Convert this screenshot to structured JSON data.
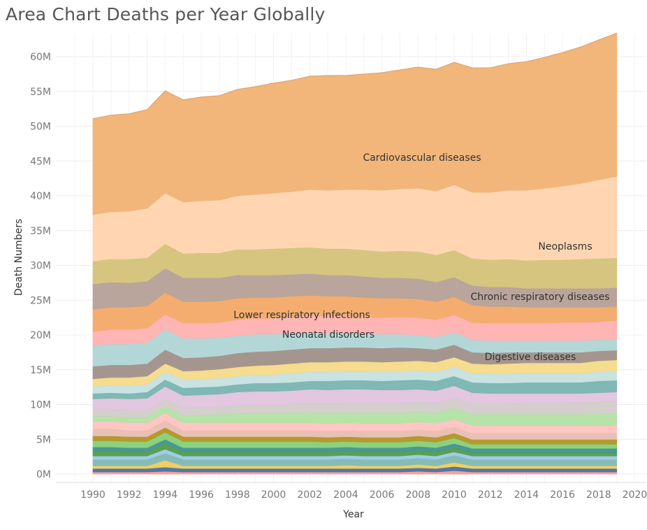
{
  "title": "Area Chart Deaths per Year Globally",
  "chart_data": {
    "type": "area",
    "title": "Area Chart Deaths per Year Globally",
    "xlabel": "Year",
    "ylabel": "Death Numbers",
    "xlim": [
      1988,
      2020
    ],
    "ylim": [
      -1,
      63
    ],
    "xticks": [
      "1990",
      "1992",
      "1994",
      "1996",
      "1998",
      "2000",
      "2002",
      "2004",
      "2006",
      "2008",
      "2010",
      "2012",
      "2014",
      "2016",
      "2018",
      "2020"
    ],
    "yticks": [
      "0M",
      "5M",
      "10M",
      "15M",
      "20M",
      "25M",
      "30M",
      "35M",
      "40M",
      "45M",
      "50M",
      "55M",
      "60M"
    ],
    "grid": true,
    "x": [
      1990,
      1991,
      1992,
      1993,
      1994,
      1995,
      1996,
      1997,
      1998,
      1999,
      2000,
      2001,
      2002,
      2003,
      2004,
      2005,
      2006,
      2007,
      2008,
      2009,
      2010,
      2011,
      2012,
      2013,
      2014,
      2015,
      2016,
      2017,
      2018,
      2019
    ],
    "series": [
      {
        "name": "",
        "color": "#ff9d9a",
        "values": [
          0.3,
          0.3,
          0.3,
          0.3,
          0.4,
          0.3,
          0.3,
          0.3,
          0.3,
          0.3,
          0.3,
          0.3,
          0.3,
          0.3,
          0.3,
          0.3,
          0.3,
          0.3,
          0.4,
          0.3,
          0.5,
          0.3,
          0.3,
          0.3,
          0.3,
          0.3,
          0.3,
          0.3,
          0.3,
          0.3
        ]
      },
      {
        "name": "",
        "color": "#4e79a7",
        "values": [
          0.5,
          0.5,
          0.5,
          0.5,
          0.6,
          0.5,
          0.5,
          0.5,
          0.5,
          0.5,
          0.5,
          0.5,
          0.5,
          0.5,
          0.5,
          0.5,
          0.5,
          0.5,
          0.5,
          0.5,
          0.6,
          0.5,
          0.5,
          0.5,
          0.5,
          0.5,
          0.5,
          0.5,
          0.5,
          0.5
        ]
      },
      {
        "name": "",
        "color": "#f1ce63",
        "values": [
          0.4,
          0.4,
          0.4,
          0.4,
          1.0,
          0.4,
          0.4,
          0.4,
          0.4,
          0.4,
          0.4,
          0.4,
          0.4,
          0.4,
          0.5,
          0.4,
          0.4,
          0.4,
          0.5,
          0.4,
          0.6,
          0.4,
          0.4,
          0.4,
          0.4,
          0.4,
          0.4,
          0.4,
          0.4,
          0.4
        ]
      },
      {
        "name": "",
        "color": "#86bcb6",
        "values": [
          0.9,
          0.9,
          0.9,
          0.9,
          1.0,
          0.9,
          0.9,
          0.9,
          0.9,
          0.9,
          0.9,
          0.9,
          0.9,
          0.9,
          0.9,
          0.9,
          0.9,
          0.9,
          0.9,
          0.9,
          1.0,
          0.9,
          0.9,
          0.9,
          0.9,
          0.9,
          0.9,
          0.9,
          0.9,
          0.9
        ]
      },
      {
        "name": "",
        "color": "#a0cbe8",
        "values": [
          0.5,
          0.5,
          0.5,
          0.5,
          0.6,
          0.5,
          0.5,
          0.5,
          0.5,
          0.5,
          0.5,
          0.5,
          0.5,
          0.5,
          0.5,
          0.5,
          0.5,
          0.5,
          0.5,
          0.5,
          0.5,
          0.5,
          0.5,
          0.5,
          0.5,
          0.5,
          0.5,
          0.5,
          0.5,
          0.5
        ]
      },
      {
        "name": "",
        "color": "#59a14f",
        "values": [
          0.7,
          0.7,
          0.6,
          0.6,
          0.8,
          0.6,
          0.6,
          0.6,
          0.6,
          0.6,
          0.6,
          0.6,
          0.6,
          0.6,
          0.6,
          0.6,
          0.6,
          0.6,
          0.6,
          0.6,
          0.6,
          0.5,
          0.5,
          0.5,
          0.5,
          0.5,
          0.5,
          0.5,
          0.5,
          0.5
        ]
      },
      {
        "name": "",
        "color": "#499894",
        "values": [
          0.6,
          0.6,
          0.6,
          0.6,
          0.6,
          0.6,
          0.6,
          0.6,
          0.6,
          0.6,
          0.6,
          0.6,
          0.6,
          0.6,
          0.6,
          0.6,
          0.6,
          0.6,
          0.6,
          0.6,
          0.6,
          0.6,
          0.6,
          0.6,
          0.6,
          0.6,
          0.6,
          0.6,
          0.6,
          0.6
        ]
      },
      {
        "name": "",
        "color": "#8cd17d",
        "values": [
          0.9,
          0.9,
          0.9,
          0.9,
          1.0,
          0.9,
          0.9,
          0.9,
          0.9,
          0.9,
          0.9,
          0.9,
          0.9,
          0.8,
          0.8,
          0.8,
          0.8,
          0.8,
          0.8,
          0.8,
          0.8,
          0.6,
          0.6,
          0.6,
          0.6,
          0.6,
          0.6,
          0.6,
          0.6,
          0.6
        ]
      },
      {
        "name": "",
        "color": "#b6992d",
        "values": [
          0.7,
          0.7,
          0.7,
          0.7,
          0.7,
          0.7,
          0.7,
          0.7,
          0.7,
          0.7,
          0.7,
          0.7,
          0.7,
          0.7,
          0.7,
          0.7,
          0.7,
          0.7,
          0.7,
          0.7,
          0.7,
          0.7,
          0.7,
          0.7,
          0.7,
          0.7,
          0.7,
          0.7,
          0.7,
          0.7
        ]
      },
      {
        "name": "",
        "color": "#e9c0b4",
        "values": [
          1.0,
          1.0,
          0.9,
          0.9,
          1.0,
          0.9,
          0.9,
          0.9,
          0.9,
          0.9,
          0.9,
          0.9,
          0.9,
          0.9,
          0.9,
          0.9,
          0.9,
          0.9,
          0.9,
          0.9,
          0.9,
          0.9,
          0.9,
          0.9,
          0.9,
          0.9,
          0.9,
          0.9,
          0.9,
          0.9
        ]
      },
      {
        "name": "",
        "color": "#ffc6c4",
        "values": [
          1.1,
          1.1,
          1.1,
          1.1,
          1.1,
          1.1,
          1.1,
          1.1,
          1.1,
          1.1,
          1.1,
          1.1,
          1.1,
          1.1,
          1.1,
          1.1,
          1.1,
          1.1,
          1.1,
          1.1,
          1.1,
          1.1,
          1.1,
          1.1,
          1.1,
          1.1,
          1.1,
          1.1,
          1.1,
          1.1
        ]
      },
      {
        "name": "",
        "color": "#b6e3a8",
        "values": [
          0.7,
          0.7,
          0.8,
          0.8,
          0.9,
          1.0,
          1.1,
          1.2,
          1.3,
          1.4,
          1.4,
          1.4,
          1.5,
          1.5,
          1.5,
          1.5,
          1.5,
          1.5,
          1.5,
          1.5,
          1.6,
          1.6,
          1.6,
          1.6,
          1.6,
          1.6,
          1.6,
          1.6,
          1.7,
          1.7
        ]
      },
      {
        "name": "",
        "color": "#d4cfcc",
        "values": [
          1.0,
          1.0,
          1.0,
          1.0,
          1.1,
          1.1,
          1.1,
          1.1,
          1.2,
          1.2,
          1.2,
          1.3,
          1.3,
          1.3,
          1.3,
          1.4,
          1.4,
          1.4,
          1.4,
          1.4,
          1.5,
          1.5,
          1.5,
          1.5,
          1.6,
          1.6,
          1.6,
          1.7,
          1.7,
          1.8
        ]
      },
      {
        "name": "",
        "color": "#e3c6e0",
        "values": [
          1.5,
          1.6,
          1.6,
          1.7,
          1.8,
          1.8,
          1.8,
          1.8,
          1.9,
          1.9,
          1.9,
          1.9,
          2.0,
          2.0,
          2.0,
          2.0,
          1.9,
          1.9,
          1.8,
          1.8,
          1.7,
          1.6,
          1.5,
          1.5,
          1.4,
          1.4,
          1.4,
          1.3,
          1.3,
          1.3
        ]
      },
      {
        "name": "",
        "color": "#7fb8b4",
        "values": [
          0.8,
          0.8,
          0.8,
          0.9,
          1.0,
          1.1,
          1.1,
          1.1,
          1.1,
          1.2,
          1.2,
          1.2,
          1.2,
          1.3,
          1.3,
          1.3,
          1.3,
          1.4,
          1.4,
          1.4,
          1.4,
          1.5,
          1.5,
          1.5,
          1.6,
          1.6,
          1.6,
          1.6,
          1.7,
          1.7
        ]
      },
      {
        "name": "",
        "color": "#c9e3e2",
        "values": [
          1.0,
          1.1,
          1.1,
          1.1,
          1.1,
          1.2,
          1.2,
          1.2,
          1.2,
          1.2,
          1.2,
          1.3,
          1.3,
          1.3,
          1.3,
          1.3,
          1.3,
          1.3,
          1.3,
          1.3,
          1.3,
          1.3,
          1.3,
          1.3,
          1.3,
          1.3,
          1.3,
          1.3,
          1.3,
          1.3
        ]
      },
      {
        "name": "",
        "color": "#f6dc8f",
        "values": [
          1.1,
          1.1,
          1.2,
          1.2,
          1.2,
          1.2,
          1.2,
          1.3,
          1.3,
          1.3,
          1.4,
          1.4,
          1.4,
          1.4,
          1.4,
          1.4,
          1.4,
          1.4,
          1.4,
          1.4,
          1.4,
          1.4,
          1.4,
          1.5,
          1.5,
          1.5,
          1.5,
          1.5,
          1.6,
          1.6
        ]
      },
      {
        "name": "",
        "color": "#a4968f",
        "values": [
          1.8,
          1.8,
          1.8,
          1.8,
          2.0,
          1.9,
          1.9,
          1.9,
          2.0,
          2.0,
          2.0,
          2.0,
          2.0,
          2.0,
          2.0,
          2.0,
          2.0,
          2.0,
          1.8,
          1.8,
          1.8,
          1.6,
          1.6,
          1.6,
          1.5,
          1.5,
          1.5,
          1.5,
          1.4,
          1.4
        ]
      },
      {
        "name": "",
        "color": "#b3d7d6",
        "values": [
          3.0,
          3.0,
          3.0,
          3.0,
          2.9,
          2.8,
          2.7,
          2.6,
          2.5,
          2.5,
          2.4,
          2.4,
          2.3,
          2.2,
          2.1,
          2.0,
          2.0,
          1.9,
          1.9,
          1.8,
          1.8,
          1.8,
          1.8,
          1.7,
          1.7,
          1.7,
          1.7,
          1.7,
          1.6,
          1.6
        ]
      },
      {
        "name": "Digestive diseases",
        "color": "#ffb5b4",
        "values": [
          2.0,
          2.1,
          2.1,
          2.1,
          2.2,
          2.2,
          2.2,
          2.2,
          2.3,
          2.3,
          2.3,
          2.3,
          2.4,
          2.4,
          2.4,
          2.4,
          2.4,
          2.5,
          2.5,
          2.5,
          2.5,
          2.5,
          2.5,
          2.5,
          2.5,
          2.5,
          2.6,
          2.6,
          2.6,
          2.7
        ]
      },
      {
        "name": "Neonatal disorders",
        "color": "#f4ad6e",
        "values": [
          3.2,
          3.2,
          3.2,
          3.2,
          3.1,
          3.1,
          3.1,
          3.1,
          3.1,
          3.0,
          3.0,
          3.0,
          2.9,
          2.9,
          2.9,
          2.8,
          2.8,
          2.7,
          2.7,
          2.6,
          2.6,
          2.5,
          2.4,
          2.4,
          2.3,
          2.3,
          2.2,
          2.2,
          2.1,
          2.0
        ]
      },
      {
        "name": "Lower respiratory infections",
        "color": "#b9a59b",
        "values": [
          3.6,
          3.6,
          3.5,
          3.5,
          3.5,
          3.4,
          3.4,
          3.3,
          3.3,
          3.2,
          3.2,
          3.1,
          3.1,
          3.0,
          3.0,
          3.0,
          2.9,
          2.9,
          2.9,
          2.8,
          2.8,
          2.8,
          2.8,
          2.8,
          2.7,
          2.7,
          2.7,
          2.7,
          2.7,
          2.7
        ]
      },
      {
        "name": "Chronic respiratory diseases",
        "color": "#d6c57f",
        "values": [
          3.3,
          3.3,
          3.4,
          3.4,
          3.5,
          3.5,
          3.6,
          3.6,
          3.7,
          3.7,
          3.8,
          3.8,
          3.8,
          3.8,
          3.8,
          3.8,
          3.8,
          3.9,
          3.9,
          3.9,
          3.9,
          3.9,
          3.9,
          4.0,
          4.0,
          4.1,
          4.1,
          4.2,
          4.3,
          4.3
        ]
      },
      {
        "name": "Neoplasms",
        "color": "#ffd6b1",
        "values": [
          6.7,
          6.8,
          6.9,
          7.1,
          7.3,
          7.4,
          7.5,
          7.6,
          7.7,
          7.9,
          8.0,
          8.1,
          8.3,
          8.4,
          8.5,
          8.7,
          8.8,
          8.9,
          9.1,
          9.2,
          9.4,
          9.5,
          9.7,
          9.9,
          10.1,
          10.3,
          10.6,
          10.9,
          11.3,
          11.7
        ]
      },
      {
        "name": "Cardiovascular diseases",
        "color": "#f2b57a",
        "values": [
          13.8,
          13.9,
          14.0,
          14.2,
          14.7,
          14.7,
          14.9,
          15.0,
          15.3,
          15.5,
          15.8,
          16.0,
          16.3,
          16.5,
          16.4,
          16.6,
          16.9,
          17.1,
          17.4,
          17.5,
          17.6,
          17.9,
          17.9,
          18.2,
          18.5,
          18.8,
          19.2,
          19.6,
          20.1,
          20.6
        ]
      }
    ]
  }
}
